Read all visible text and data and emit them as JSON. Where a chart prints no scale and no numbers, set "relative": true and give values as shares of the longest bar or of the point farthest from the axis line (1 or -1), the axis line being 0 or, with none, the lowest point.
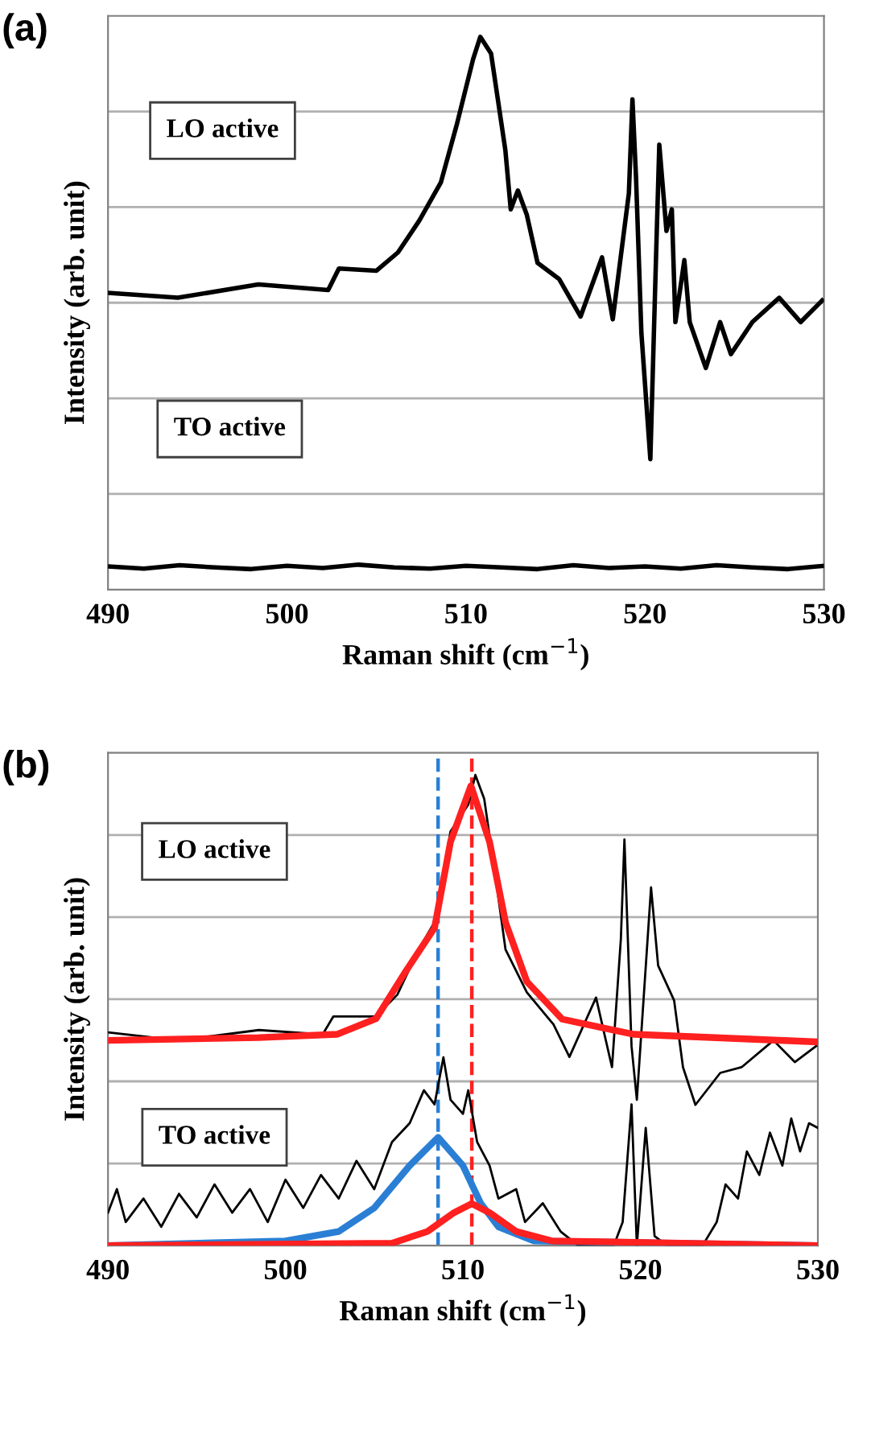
{
  "chart_data": [
    {
      "type": "line",
      "title": "(a)",
      "annotations": [
        "LO active",
        "TO active"
      ],
      "xlabel": "Raman shift (cm$^{−1}$)",
      "ylabel": "Intensity (arb. unit)",
      "xlim": [
        490,
        530
      ],
      "xticks": [
        490,
        500,
        510,
        520,
        530
      ],
      "relative": true,
      "tick_labels": "x",
      "grid": "y",
      "line_style": "solid",
      "series": [
        {
          "color": "#000000",
          "x": [
            490,
            493.9,
            498.4,
            502.3,
            502.9,
            505,
            506.2,
            507.4,
            508.6,
            509.5,
            510.4,
            510.8,
            511.4,
            512.2,
            512.5,
            512.9,
            513.4,
            514,
            515.2,
            516.4,
            517.6,
            518.2,
            519.1,
            519.3,
            519.5,
            519.8,
            520.3,
            520.6,
            520.8,
            521.2,
            521.5,
            521.7,
            522.2,
            522.5,
            523.4,
            524.2,
            524.8,
            526,
            527.5,
            528.7,
            529.9
          ],
          "values": [
            0.537,
            0.528,
            0.552,
            0.542,
            0.581,
            0.577,
            0.61,
            0.668,
            0.737,
            0.843,
            0.96,
            1,
            0.97,
            0.795,
            0.688,
            0.722,
            0.678,
            0.591,
            0.562,
            0.494,
            0.601,
            0.489,
            0.717,
            0.887,
            0.746,
            0.464,
            0.236,
            0.581,
            0.805,
            0.649,
            0.688,
            0.484,
            0.596,
            0.484,
            0.401,
            0.484,
            0.426,
            0.484,
            0.528,
            0.484,
            0.523
          ]
        },
        {
          "color": "#000000",
          "x": [
            490,
            492,
            494,
            496,
            498,
            500,
            502,
            504,
            506,
            508,
            510,
            512,
            514,
            516,
            518,
            520,
            522,
            524,
            526,
            528,
            530
          ],
          "values": [
            0.042,
            0.038,
            0.044,
            0.04,
            0.037,
            0.043,
            0.039,
            0.045,
            0.04,
            0.038,
            0.043,
            0.04,
            0.037,
            0.044,
            0.039,
            0.042,
            0.038,
            0.044,
            0.04,
            0.037,
            0.043
          ]
        }
      ]
    },
    {
      "type": "line",
      "title": "(b)",
      "annotations": [
        "LO active",
        "TO active"
      ],
      "xlabel": "Raman shift (cm$^{−1}$)",
      "ylabel": "Intensity (arb. unit)",
      "xlim": [
        490,
        530
      ],
      "xticks": [
        490,
        500,
        510,
        520,
        530
      ],
      "relative": true,
      "tick_labels": "x",
      "grid": "y",
      "line_style": "solid",
      "ref_lines": [
        {
          "axis": "x",
          "value": 508.6,
          "label": null,
          "color": "#2a7fd4",
          "line_style": "dashed"
        },
        {
          "axis": "x",
          "value": 510.5,
          "label": null,
          "color": "#ff2020",
          "line_style": "dashed"
        }
      ],
      "series": [
        {
          "color": "#000000",
          "x": [
            490,
            494,
            498.5,
            502.1,
            502.7,
            505.1,
            506.3,
            507.5,
            508.4,
            509.3,
            510.3,
            510.7,
            511.2,
            511.9,
            512.4,
            513.6,
            515.1,
            516,
            517.5,
            518.4,
            518.9,
            519.1,
            519.5,
            519.8,
            520.6,
            521,
            521.9,
            522.4,
            523.1,
            524.5,
            525.7,
            527.5,
            528.7,
            529.9
          ],
          "values": [
            0.453,
            0.436,
            0.458,
            0.449,
            0.487,
            0.487,
            0.533,
            0.629,
            0.687,
            0.88,
            0.937,
            1,
            0.949,
            0.766,
            0.629,
            0.538,
            0.47,
            0.401,
            0.527,
            0.379,
            0.652,
            0.863,
            0.424,
            0.31,
            0.761,
            0.595,
            0.521,
            0.379,
            0.299,
            0.367,
            0.379,
            0.436,
            0.39,
            0.424
          ]
        },
        {
          "color": "#ff2020",
          "x": [
            490,
            498.5,
            502.9,
            505.1,
            506.8,
            508.4,
            509.3,
            510.45,
            511.5,
            512.4,
            513.6,
            515.6,
            519.6,
            529.9
          ],
          "values": [
            0.436,
            0.442,
            0.449,
            0.482,
            0.584,
            0.675,
            0.858,
            0.977,
            0.858,
            0.687,
            0.561,
            0.481,
            0.449,
            0.433
          ]
        },
        {
          "color": "#000000",
          "x": [
            490,
            490.5,
            491,
            492,
            493,
            494,
            495,
            496,
            497,
            498,
            499,
            500,
            501,
            502,
            503,
            504,
            505,
            506,
            507,
            507.8,
            508.4,
            508.9,
            509.3,
            510,
            510.3,
            510.8,
            511.5,
            512,
            513,
            513.5,
            514.5,
            515.5,
            516.5,
            517.5,
            518.5,
            519,
            519.5,
            519.8,
            520.3,
            520.8,
            521.5,
            522.5,
            523.5,
            524.3,
            524.8,
            525.5,
            526,
            526.7,
            527.3,
            528,
            528.5,
            529,
            529.5,
            530
          ],
          "values": [
            0.07,
            0.12,
            0.05,
            0.1,
            0.04,
            0.11,
            0.06,
            0.13,
            0.07,
            0.12,
            0.05,
            0.14,
            0.08,
            0.15,
            0.1,
            0.18,
            0.12,
            0.22,
            0.26,
            0.33,
            0.3,
            0.4,
            0.31,
            0.28,
            0.33,
            0.22,
            0.17,
            0.1,
            0.12,
            0.05,
            0.09,
            0.03,
            0,
            0,
            0,
            0.05,
            0.3,
            0,
            0.25,
            0.02,
            0,
            0,
            0,
            0.05,
            0.13,
            0.1,
            0.2,
            0.15,
            0.24,
            0.17,
            0.27,
            0.2,
            0.26,
            0.25
          ]
        },
        {
          "color": "#2a7fd4",
          "x": [
            490,
            500,
            503,
            505,
            507,
            508.6,
            510,
            511,
            512,
            514,
            530
          ],
          "values": [
            0,
            0.01,
            0.03,
            0.08,
            0.17,
            0.23,
            0.17,
            0.09,
            0.04,
            0.01,
            0
          ]
        },
        {
          "color": "#ff2020",
          "x": [
            490,
            506,
            508,
            509.5,
            510.5,
            511.5,
            513,
            515,
            530
          ],
          "values": [
            0,
            0.005,
            0.03,
            0.07,
            0.089,
            0.07,
            0.03,
            0.01,
            0
          ]
        }
      ]
    }
  ]
}
